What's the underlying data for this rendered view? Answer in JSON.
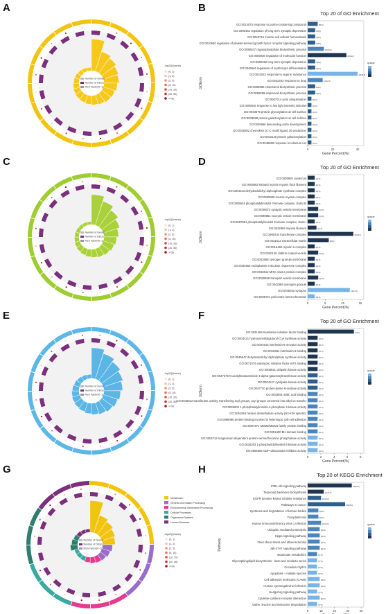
{
  "panels": {
    "labels": [
      "A",
      "B",
      "C",
      "D",
      "E",
      "F",
      "G",
      "H"
    ]
  },
  "circle_legend": {
    "items": [
      "Number of Genes",
      "Number of DEGs",
      "Rich Factor(0~1)"
    ],
    "scale_title": "-log10(Qvalue)",
    "scale_items": [
      "(0, 1)",
      "(1, 2)",
      "(2, 5)",
      "(5, 10)",
      "(10, 20)",
      "(20, 50)",
      ">=50"
    ]
  },
  "kegg_categories": {
    "items": [
      "Metabolism",
      "Genetic Information Processing",
      "Environmental Information Processing",
      "Cellular Processes",
      "Organismal Systems",
      "Human Diseases"
    ],
    "colors": [
      "#f2c40f",
      "#9a6ec8",
      "#e7398f",
      "#3aa99f",
      "#2e7d6d",
      "#7b2f7c"
    ]
  },
  "chart_data": [
    {
      "panel": "B",
      "type": "bar",
      "title": "Top 20 of GO Enrichment",
      "xlabel": "Gene Percent(%)",
      "ylabel": "GOterm",
      "xlim": [
        0,
        45
      ],
      "xticks": [
        0,
        20,
        40
      ],
      "legend_title": "qvalue",
      "categories": [
        "GO:0014074 response to purine-containing compound",
        "GO:1900452 regulation of long term synaptic depression",
        "GO:0046716 muscle cell cellular homeostasis",
        "GO:0010640 regulation of platelet-derived growth factor receptor signaling pathway",
        "GO:0090407 organophosphate biosynthetic process",
        "GO:0005936 regulation of molecular function",
        "GO:0060292 long term synaptic depression",
        "GO:0045646 regulation of erythrocyte differentiation",
        "GO:0010033 response to organic substance",
        "GO:0042493 response to drug",
        "GO:0006695 cholesterol biosynthetic process",
        "GO:0008299 isoprenoid biosynthetic process",
        "GO:0007014 actin ubiquitination",
        "GO:0009645 response to low light intensity stimulus",
        "GO:0033575 protein glycosylation at cell surface",
        "GO:0033580 protein galactosylation at cell surface",
        "GO:0035666 descending aorta development",
        "GO:0036392 chemokine (C-C motif) ligand 20 production",
        "GO:0042125 protein galactosylation",
        "GO:0046690 response to tellurium ion"
      ],
      "values": [
        8,
        6,
        6,
        6,
        13,
        31,
        6,
        6,
        40,
        12,
        6,
        6,
        3,
        3,
        3,
        3,
        3,
        3,
        3,
        3
      ],
      "value_labels": [
        "8(8.0)",
        "6(6.0)",
        "6(6.0)",
        "6(6.0)",
        "13(13.0)",
        "31(31.0)",
        "6(6.0)",
        "6(6.0)",
        "40(40.0)",
        "12(12.0)",
        "6(6.0)",
        "6(6.0)",
        "3(3.0)",
        "3(3.0)",
        "3(3.0)",
        "3(3.0)",
        "3(3.0)",
        "3(3.0)",
        "3(3.0)",
        "3(3.0)"
      ]
    },
    {
      "panel": "D",
      "type": "bar",
      "title": "Top 20 of GO Enrichment",
      "xlabel": "Gene Percent(%)",
      "ylabel": "GOterm",
      "xlim": [
        0,
        16
      ],
      "xticks": [
        0,
        5,
        10,
        15
      ],
      "legend_title": "qvalue",
      "categories": [
        "GO:0005905 coated pit",
        "GO:0005863 striated muscle myosin thick filament",
        "GO:1904423 dehydrodolichyl diphosphate synthase complex",
        "GO:0005859 muscle myosin complex",
        "GO:0005944 phosphatidylinositol 3-kinase complex, class IB",
        "GO:0030672 synaptic vesicle membrane",
        "GO:0098851 exocytic vesicle membrane",
        "GO:0097651 phosphatidylinositol 3-kinase complex, class I",
        "GO:0032982 myosin filament",
        "GO:1990234 transferase complex",
        "GO:0031012 extracellular matrix",
        "GO:0016460 myosin II complex",
        "GO:0030136 clathrin-coated vesicle",
        "GO:0042588 zymogen granule membrane",
        "GO:0034663 endoplasmic reticulum chaperone complex",
        "GO:0042612 MHC class I protein complex",
        "GO:0030658 transport vesicle membrane",
        "GO:0042589 zymogen granule",
        "GO:0045202 synapse",
        "GO:0005721 pericentric heterochromatin"
      ],
      "values": [
        2,
        2,
        2,
        2,
        2,
        3,
        3,
        2,
        2.5,
        13,
        6,
        2,
        3,
        2,
        2,
        2,
        3,
        2,
        12,
        2
      ],
      "value_labels": [
        "2(2.0)",
        "2(2.0)",
        "2(2.0)",
        "2(2.0)",
        "2(2.0)",
        "3(3.0)",
        "3(3.0)",
        "2(2.0)",
        "2(2.5)",
        "13(13.0)",
        "6(6.0)",
        "2(2.0)",
        "3(3.0)",
        "2(2.0)",
        "2(2.0)",
        "2(2.0)",
        "3(3.0)",
        "2(2.0)",
        "12(12.0)",
        "2(2.0)"
      ]
    },
    {
      "panel": "F",
      "type": "bar",
      "title": "Top 20 of GO Enrichment",
      "xlabel": "Gene Percent(%)",
      "ylabel": "GOterm",
      "xlim": [
        0,
        8.5
      ],
      "xticks": [
        0,
        2,
        4,
        6,
        8
      ],
      "legend_title": "qvalue",
      "categories": [
        "GO:0031369 translation initiation factor binding",
        "GO:0004421 hydroxymethylglutaryl-CoA synthase activity",
        "GO:0004915 interleukin-6 receptor activity",
        "GO:0019981 interleukin-6 binding",
        "GO:0045547 dehydrodolichyl diphosphate synthase activity",
        "GO:0071074 eukaryotic initiation factor eIF2 binding",
        "GO:0008641 ubiquitin kinase activity",
        "GO:0047276 N-acetyllactosaminide 3-alpha-galactosyltransferase activity",
        "GO:0004127 cytidylate kinase activity",
        "GO:0047720 protein-lysine 6-oxidase activity",
        "GO:0033691 sialic acid binding",
        "GO:0046912 transferase activity, transferring acyl groups, acyl groups converted into alkyl on transfer",
        "GO:0035005 1-phosphatidylinositol-4-phosphate 3-kinase activity",
        "GO:0051864 histone demethylase activity (H3-K36 specific)",
        "GO:0086080 protein binding involved in heterotypic cell-cell adhesion",
        "GO:0097371 MDM2/MDM4 family protein binding",
        "GO:0051400 BH domain binding",
        "GO:0004724 magnesium-dependent protein serine/threonine phosphatase activity",
        "GO:0016303 1-phosphatidylinositol-3-kinase activity",
        "GO:0005092 GDP-dissociation inhibitor activity"
      ],
      "values": [
        7,
        1.5,
        1.5,
        1.5,
        1.5,
        1.5,
        1.5,
        1.5,
        1.5,
        1.5,
        1.5,
        1.5,
        1.5,
        1.5,
        1.5,
        1.5,
        1.5,
        1.5,
        1.5,
        1.5
      ],
      "value_labels": [
        "7(7.0)",
        "1(1.5)",
        "1(1.5)",
        "1(1.5)",
        "1(1.5)",
        "1(1.5)",
        "1(1.5)",
        "1(1.5)",
        "1(1.5)",
        "1(1.5)",
        "1(1.5)",
        "1(1.5)",
        "1(1.5)",
        "1(1.5)",
        "1(1.5)",
        "1(1.5)",
        "1(1.5)",
        "1(1.5)",
        "1(1.5)",
        "1(1.5)"
      ]
    },
    {
      "panel": "H",
      "type": "bar",
      "title": "Top 20 of KEGG Enrichment",
      "xlabel": "Gene Percent(%)",
      "ylabel": "Pathway",
      "xlim": [
        0,
        42
      ],
      "xticks": [
        0,
        10,
        20,
        30,
        40
      ],
      "legend_title": "qvalue",
      "categories": [
        "PI3K-Akt signaling pathway",
        "Terpenoid backbone biosynthesis",
        "EGFR tyrosine kinase inhibitor resistance",
        "Pathways in cancer",
        "Synthesis and degradation of ketone bodies",
        "Toxoplasmosis",
        "Human immunodeficiency virus 1 infection",
        "Ubiquitin mediated proteolysis",
        "Hippo signaling pathway",
        "Fluid shear stress and atherosclerosis",
        "Jak-STAT signaling pathway",
        "Butanoate metabolism",
        "Glycosphingolipid biosynthesis - lacto and neolacto series",
        "Circadian rhythm",
        "Apoptosis - multiple species",
        "Cell adhesion molecules (CAMs)",
        "Human cytomegalovirus infection",
        "Hedgehog signaling pathway",
        "Cytokine-cytokine receptor interaction",
        "Valine, leucine and isoleucine degradation"
      ],
      "values": [
        33,
        12,
        10,
        28,
        8,
        8,
        10,
        9,
        9,
        9,
        9,
        7,
        7,
        7,
        7,
        9,
        9,
        7,
        9,
        7
      ],
      "value_labels": [
        "33(33.0)",
        "12(12.0)",
        "10(10.0)",
        "28(28.0)",
        "8(8.0)",
        "8(8.0)",
        "10(10.0)",
        "9(9.0)",
        "9(9.0)",
        "9(9.0)",
        "9(9.0)",
        "7(7.0)",
        "7(7.0)",
        "7(7.0)",
        "7(7.0)",
        "9(9.0)",
        "9(9.0)",
        "7(7.0)",
        "9(9.0)",
        "7(7.0)"
      ]
    }
  ]
}
